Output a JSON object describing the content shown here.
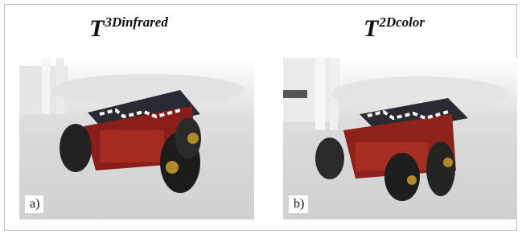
{
  "panels": [
    {
      "title": {
        "base": "T",
        "superscript": "3Dinfrared"
      },
      "label": "a)"
    },
    {
      "title": {
        "base": "T",
        "superscript": "2Dcolor"
      },
      "label": "b)"
    }
  ]
}
